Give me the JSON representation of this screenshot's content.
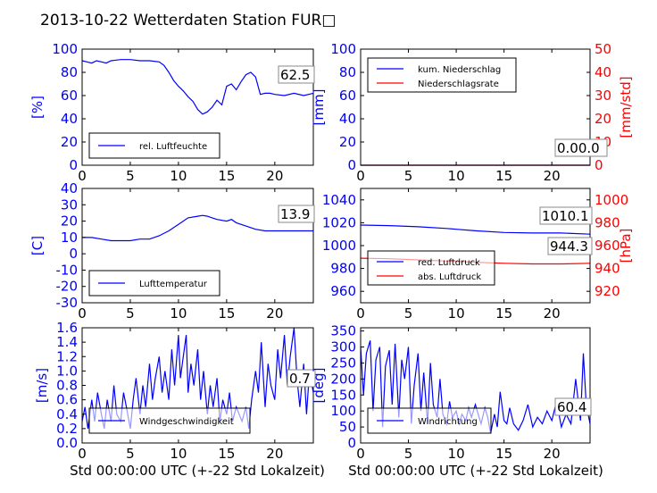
{
  "title": "2013-10-22 Wetterdaten Station FUR□",
  "xlabel": "Std 00:00:00 UTC (+-22 Std Lokalzeit)",
  "colors": {
    "blue": "#0000ff",
    "red": "#ff0000",
    "black": "#000000"
  },
  "chart_data": [
    {
      "id": "humidity",
      "type": "line",
      "ylabel": "[%]",
      "ylim": [
        0,
        100
      ],
      "yticks": [
        0,
        20,
        40,
        60,
        80,
        100
      ],
      "xlim": [
        0,
        24
      ],
      "xticks": [
        0,
        5,
        10,
        15,
        20
      ],
      "legend": {
        "placement": "lower-left",
        "entries": [
          "rel. Luftfeuchte"
        ]
      },
      "annotation": "62.5",
      "series": [
        {
          "name": "rel. Luftfeuchte",
          "color": "#0000ff",
          "axis": "left",
          "x": [
            0,
            0.5,
            1,
            1.5,
            2,
            2.5,
            3,
            4,
            5,
            6,
            7,
            8,
            8.5,
            9,
            9.5,
            10,
            10.5,
            11,
            11.5,
            12,
            12.5,
            13,
            13.5,
            14,
            14.5,
            15,
            15.5,
            16,
            16.5,
            17,
            17.5,
            18,
            18.5,
            19,
            19.5,
            20,
            21,
            22,
            23,
            24
          ],
          "y": [
            90,
            89,
            88,
            90,
            89,
            88,
            90,
            91,
            91,
            90,
            90,
            89,
            86,
            80,
            73,
            68,
            64,
            59,
            55,
            48,
            44,
            46,
            50,
            56,
            52,
            68,
            70,
            65,
            72,
            78,
            80,
            76,
            61,
            62,
            62,
            61,
            60,
            62,
            60,
            62
          ]
        }
      ]
    },
    {
      "id": "precip",
      "type": "line",
      "ylabel": "[mm]",
      "ylim": [
        0,
        100
      ],
      "yticks": [
        0,
        20,
        40,
        60,
        80,
        100
      ],
      "y2label": "[mm/std]",
      "y2lim": [
        0,
        50
      ],
      "y2ticks": [
        0,
        10,
        20,
        30,
        40,
        50
      ],
      "xlim": [
        0,
        24
      ],
      "xticks": [
        0,
        5,
        10,
        15,
        20
      ],
      "legend": {
        "placement": "upper-left",
        "entries": [
          "kum. Niederschlag",
          "Niederschlagsrate"
        ]
      },
      "annotation": "0.00.0",
      "series": [
        {
          "name": "kum. Niederschlag",
          "color": "#0000ff",
          "axis": "left",
          "x": [
            0,
            24
          ],
          "y": [
            0,
            0
          ]
        },
        {
          "name": "Niederschlagsrate",
          "color": "#ff0000",
          "axis": "right",
          "x": [
            0,
            24
          ],
          "y": [
            0,
            0
          ]
        }
      ]
    },
    {
      "id": "temperature",
      "type": "line",
      "ylabel": "[C]",
      "ylim": [
        -30,
        40
      ],
      "yticks": [
        -30,
        -20,
        -10,
        0,
        10,
        20,
        30,
        40
      ],
      "xlim": [
        0,
        24
      ],
      "xticks": [
        0,
        5,
        10,
        15,
        20
      ],
      "legend": {
        "placement": "lower-left",
        "entries": [
          "Lufttemperatur"
        ]
      },
      "annotation": "13.9",
      "series": [
        {
          "name": "Lufttemperatur",
          "color": "#0000ff",
          "axis": "left",
          "x": [
            0,
            1,
            2,
            3,
            4,
            5,
            6,
            7,
            8,
            9,
            10,
            11,
            12,
            12.5,
            13,
            13.5,
            14,
            15,
            15.5,
            16,
            17,
            18,
            19,
            20,
            21,
            22,
            23,
            24
          ],
          "y": [
            10,
            10,
            9,
            8,
            8,
            8,
            9,
            9,
            11,
            14,
            18,
            22,
            23,
            23.5,
            23,
            22,
            21,
            20,
            21,
            19,
            17,
            15,
            14,
            14,
            14,
            14,
            14,
            14
          ]
        }
      ]
    },
    {
      "id": "pressure",
      "type": "line",
      "ylim": [
        950,
        1050
      ],
      "yticks": [
        960,
        980,
        1000,
        1020,
        1040
      ],
      "y2label": "[hPa]",
      "y2lim": [
        910,
        1010
      ],
      "y2ticks": [
        920,
        940,
        960,
        980,
        1000
      ],
      "xlim": [
        0,
        24
      ],
      "xticks": [
        0,
        5,
        10,
        15,
        20
      ],
      "legend": {
        "placement": "center-left",
        "entries": [
          "red. Luftdruck",
          "abs. Luftdruck"
        ]
      },
      "annotations": [
        "1010.1",
        "944.3"
      ],
      "series": [
        {
          "name": "red. Luftdruck",
          "color": "#0000ff",
          "axis": "left",
          "x": [
            0,
            3,
            6,
            9,
            12,
            15,
            18,
            21,
            24
          ],
          "y": [
            1018,
            1017.5,
            1016.5,
            1015,
            1013,
            1011.5,
            1011,
            1011,
            1010
          ]
        },
        {
          "name": "abs. Luftdruck",
          "color": "#ff0000",
          "axis": "right",
          "x": [
            0,
            3,
            6,
            9,
            12,
            15,
            18,
            21,
            24
          ],
          "y": [
            949,
            948.5,
            947.5,
            946.5,
            945.5,
            944.5,
            944,
            944,
            944.5
          ]
        }
      ]
    },
    {
      "id": "windspeed",
      "type": "line",
      "ylabel": "[m/s]",
      "ylim": [
        0,
        1.6
      ],
      "yticks": [
        0.0,
        0.2,
        0.4,
        0.6,
        0.8,
        1.0,
        1.2,
        1.4,
        1.6
      ],
      "xlim": [
        0,
        24
      ],
      "xticks": [
        0,
        5,
        10,
        15,
        20
      ],
      "legend": {
        "placement": "lower-left",
        "entries": [
          "Windgeschwindigkeit"
        ]
      },
      "annotation": "0.7",
      "series": [
        {
          "name": "Windgeschwindigkeit",
          "color": "#0000ff",
          "axis": "left",
          "x": [
            0,
            0.3,
            0.6,
            1,
            1.3,
            1.6,
            2,
            2.3,
            2.6,
            3,
            3.3,
            3.6,
            4,
            4.3,
            4.6,
            5,
            5.3,
            5.6,
            6,
            6.3,
            6.6,
            7,
            7.3,
            7.6,
            8,
            8.3,
            8.6,
            9,
            9.3,
            9.6,
            10,
            10.2,
            10.5,
            10.8,
            11,
            11.3,
            11.6,
            12,
            12.3,
            12.6,
            13,
            13.3,
            13.6,
            14,
            14.3,
            14.6,
            15,
            15.3,
            15.6,
            16,
            16.3,
            16.6,
            17,
            17.3,
            17.6,
            18,
            18.3,
            18.6,
            19,
            19.3,
            19.6,
            20,
            20.3,
            20.6,
            21,
            21.3,
            21.6,
            22,
            22.3,
            22.6,
            23,
            23.3,
            23.6,
            24
          ],
          "y": [
            0.3,
            0.5,
            0.2,
            0.6,
            0.3,
            0.7,
            0.4,
            0.2,
            0.6,
            0.3,
            0.8,
            0.4,
            0.3,
            0.7,
            0.5,
            0.2,
            0.6,
            0.9,
            0.4,
            0.8,
            0.5,
            1.1,
            0.6,
            0.9,
            1.2,
            0.7,
            1.0,
            0.6,
            1.3,
            0.8,
            1.5,
            0.9,
            1.2,
            1.5,
            0.7,
            1.1,
            0.8,
            1.3,
            0.6,
            1.0,
            0.4,
            0.8,
            0.5,
            0.9,
            0.3,
            0.6,
            0.4,
            0.7,
            0.3,
            0.5,
            0.4,
            0.3,
            0.5,
            0.2,
            0.6,
            1.0,
            0.7,
            1.4,
            0.5,
            1.1,
            0.8,
            0.6,
            1.3,
            0.9,
            1.5,
            0.8,
            1.2,
            1.6,
            0.9,
            0.5,
            1.1,
            0.4,
            1.0,
            0.7
          ]
        }
      ]
    },
    {
      "id": "winddir",
      "type": "line",
      "ylabel": "[deg]",
      "ylim": [
        0,
        360
      ],
      "yticks": [
        0,
        50,
        100,
        150,
        200,
        250,
        300,
        350
      ],
      "xlim": [
        0,
        24
      ],
      "xticks": [
        0,
        5,
        10,
        15,
        20
      ],
      "legend": {
        "placement": "lower-left",
        "entries": [
          "Windrichtung"
        ]
      },
      "annotation": "60.4",
      "series": [
        {
          "name": "Windrichtung",
          "color": "#0000ff",
          "axis": "left",
          "x": [
            0,
            0.3,
            0.6,
            1,
            1.3,
            1.6,
            2,
            2.3,
            2.6,
            3,
            3.3,
            3.6,
            4,
            4.3,
            4.6,
            5,
            5.3,
            5.6,
            6,
            6.3,
            6.6,
            7,
            7.3,
            7.6,
            8,
            8.3,
            8.6,
            9,
            9.3,
            9.6,
            10,
            10.3,
            10.6,
            11,
            11.3,
            11.6,
            12,
            12.3,
            12.6,
            13,
            13.3,
            13.6,
            14,
            14.3,
            14.6,
            15,
            15.3,
            15.6,
            16,
            16.5,
            17,
            17.5,
            18,
            18.5,
            19,
            19.5,
            20,
            20.5,
            21,
            21.5,
            22,
            22.5,
            23,
            23.3,
            23.6,
            24
          ],
          "y": [
            300,
            150,
            280,
            320,
            100,
            260,
            300,
            50,
            240,
            290,
            120,
            310,
            80,
            260,
            200,
            300,
            60,
            180,
            280,
            100,
            220,
            60,
            250,
            120,
            80,
            200,
            90,
            60,
            130,
            80,
            100,
            60,
            90,
            70,
            110,
            80,
            120,
            90,
            60,
            110,
            80,
            30,
            90,
            50,
            160,
            70,
            60,
            110,
            60,
            40,
            70,
            120,
            50,
            80,
            60,
            100,
            70,
            130,
            50,
            90,
            60,
            200,
            70,
            280,
            120,
            60
          ]
        }
      ]
    }
  ]
}
